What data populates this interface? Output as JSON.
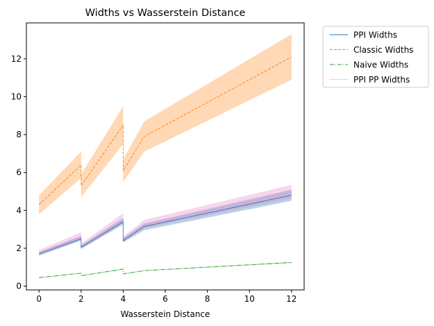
{
  "chart_data": {
    "type": "line",
    "title": "Widths vs Wasserstein Distance",
    "xlabel": "Wasserstein Distance",
    "ylabel": "",
    "xlim": [
      -0.6,
      12.6
    ],
    "ylim": [
      -0.2,
      13.9
    ],
    "xticks": [
      0,
      2,
      4,
      6,
      8,
      10,
      12
    ],
    "xtick_labels": [
      "0",
      "2",
      "4",
      "6",
      "8",
      "10",
      "12"
    ],
    "yticks": [
      0,
      2,
      4,
      6,
      8,
      10,
      12
    ],
    "ytick_labels": [
      "0",
      "2",
      "4",
      "6",
      "8",
      "10",
      "12"
    ],
    "grid": false,
    "legend_position": "outside upper right",
    "series": [
      {
        "name": "PPI Widths",
        "color": "#1f77b4",
        "linestyle": "solid",
        "points": [
          [
            0,
            1.7
          ],
          [
            2,
            2.5
          ],
          [
            2,
            2.05
          ],
          [
            4,
            3.4
          ],
          [
            4,
            2.4
          ],
          [
            5,
            3.15
          ],
          [
            12,
            4.8
          ]
        ],
        "band_lower": [
          [
            0,
            1.6
          ],
          [
            2,
            2.4
          ],
          [
            2,
            1.95
          ],
          [
            4,
            3.25
          ],
          [
            4,
            2.3
          ],
          [
            5,
            2.95
          ],
          [
            12,
            4.5
          ]
        ],
        "band_upper": [
          [
            0,
            1.8
          ],
          [
            2,
            2.65
          ],
          [
            2,
            2.15
          ],
          [
            4,
            3.6
          ],
          [
            4,
            2.55
          ],
          [
            5,
            3.3
          ],
          [
            12,
            5.1
          ]
        ]
      },
      {
        "name": "Classic Widths",
        "color": "#ff7f0e",
        "linestyle": "dashed",
        "points": [
          [
            0,
            4.3
          ],
          [
            2,
            6.4
          ],
          [
            2,
            5.3
          ],
          [
            4,
            8.5
          ],
          [
            4,
            6.1
          ],
          [
            5,
            7.9
          ],
          [
            12,
            12.1
          ]
        ],
        "band_lower": [
          [
            0,
            3.8
          ],
          [
            2,
            5.7
          ],
          [
            2,
            4.7
          ],
          [
            4,
            7.5
          ],
          [
            4,
            5.5
          ],
          [
            5,
            7.1
          ],
          [
            12,
            10.9
          ]
        ],
        "band_upper": [
          [
            0,
            4.8
          ],
          [
            2,
            7.1
          ],
          [
            2,
            5.9
          ],
          [
            4,
            9.5
          ],
          [
            4,
            6.7
          ],
          [
            5,
            8.7
          ],
          [
            12,
            13.3
          ]
        ]
      },
      {
        "name": "Naive Widths",
        "color": "#2ca02c",
        "linestyle": "dashdot",
        "points": [
          [
            0,
            0.45
          ],
          [
            2,
            0.68
          ],
          [
            2,
            0.55
          ],
          [
            4,
            0.9
          ],
          [
            4,
            0.65
          ],
          [
            5,
            0.82
          ],
          [
            12,
            1.25
          ]
        ],
        "band_lower": [
          [
            0,
            0.43
          ],
          [
            2,
            0.66
          ],
          [
            2,
            0.53
          ],
          [
            4,
            0.87
          ],
          [
            4,
            0.63
          ],
          [
            5,
            0.8
          ],
          [
            12,
            1.22
          ]
        ],
        "band_upper": [
          [
            0,
            0.47
          ],
          [
            2,
            0.7
          ],
          [
            2,
            0.57
          ],
          [
            4,
            0.93
          ],
          [
            4,
            0.67
          ],
          [
            5,
            0.84
          ],
          [
            12,
            1.28
          ]
        ]
      },
      {
        "name": "PPI PP Widths",
        "color": "#e377c2",
        "linestyle": "dotted",
        "points": [
          [
            0,
            1.75
          ],
          [
            2,
            2.6
          ],
          [
            2,
            2.1
          ],
          [
            4,
            3.5
          ],
          [
            4,
            2.45
          ],
          [
            5,
            3.25
          ],
          [
            12,
            4.95
          ]
        ],
        "band_lower": [
          [
            0,
            1.65
          ],
          [
            2,
            2.45
          ],
          [
            2,
            2.0
          ],
          [
            4,
            3.3
          ],
          [
            4,
            2.35
          ],
          [
            5,
            3.05
          ],
          [
            12,
            4.6
          ]
        ],
        "band_upper": [
          [
            0,
            1.9
          ],
          [
            2,
            2.85
          ],
          [
            2,
            2.25
          ],
          [
            4,
            3.85
          ],
          [
            4,
            2.6
          ],
          [
            5,
            3.5
          ],
          [
            12,
            5.35
          ]
        ]
      }
    ]
  }
}
